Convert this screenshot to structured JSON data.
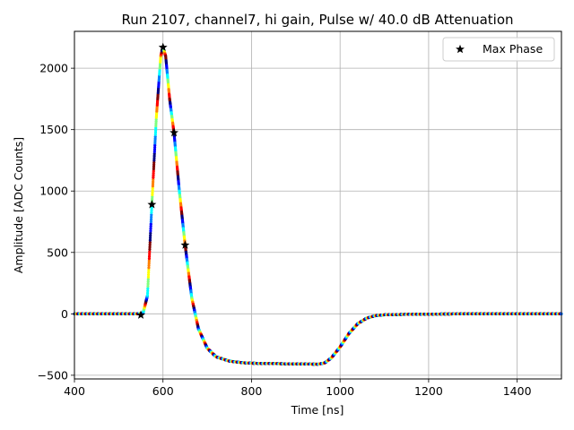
{
  "chart_data": {
    "type": "scatter",
    "title": "Run 2107, channel7, hi gain, Pulse w/ 40.0 dB Attenuation",
    "xlabel": "Time [ns]",
    "ylabel": "Amplitude [ADC Counts]",
    "xlim": [
      400,
      1500
    ],
    "ylim": [
      -530,
      2300
    ],
    "xticks": [
      "400",
      "600",
      "800",
      "1000",
      "1200",
      "1400"
    ],
    "yticks": [
      "−500",
      "0",
      "500",
      "1000",
      "1500",
      "2000"
    ],
    "grid": true,
    "legend": {
      "placement": "top-right",
      "entries": [
        "Max Phase"
      ]
    },
    "colormap": [
      "#00007f",
      "#0000ff",
      "#007fff",
      "#00ffff",
      "#7fff7f",
      "#ffff00",
      "#ff7f00",
      "#ff0000",
      "#7f0000"
    ],
    "series": [
      {
        "kind": "pulse-scatter",
        "color": "jet-cycle",
        "points": [
          [
            400,
            0
          ],
          [
            540,
            0
          ],
          [
            555,
            5
          ],
          [
            565,
            150
          ],
          [
            575,
            900
          ],
          [
            585,
            1600
          ],
          [
            595,
            2100
          ],
          [
            600,
            2170
          ],
          [
            606,
            2100
          ],
          [
            615,
            1750
          ],
          [
            625,
            1470
          ],
          [
            637,
            1000
          ],
          [
            650,
            560
          ],
          [
            665,
            130
          ],
          [
            680,
            -120
          ],
          [
            700,
            -280
          ],
          [
            720,
            -350
          ],
          [
            750,
            -385
          ],
          [
            780,
            -398
          ],
          [
            800,
            -402
          ],
          [
            850,
            -405
          ],
          [
            900,
            -408
          ],
          [
            950,
            -410
          ],
          [
            965,
            -400
          ],
          [
            980,
            -360
          ],
          [
            1000,
            -270
          ],
          [
            1020,
            -160
          ],
          [
            1040,
            -80
          ],
          [
            1060,
            -35
          ],
          [
            1080,
            -15
          ],
          [
            1100,
            -8
          ],
          [
            1150,
            -4
          ],
          [
            1200,
            -2
          ],
          [
            1300,
            0
          ],
          [
            1400,
            0
          ],
          [
            1500,
            0
          ]
        ]
      },
      {
        "name": "Max Phase",
        "kind": "markers",
        "marker": "star",
        "color": "#000000",
        "points": [
          [
            550,
            -10
          ],
          [
            575,
            890
          ],
          [
            600,
            2170
          ],
          [
            625,
            1475
          ],
          [
            650,
            560
          ]
        ]
      }
    ]
  }
}
